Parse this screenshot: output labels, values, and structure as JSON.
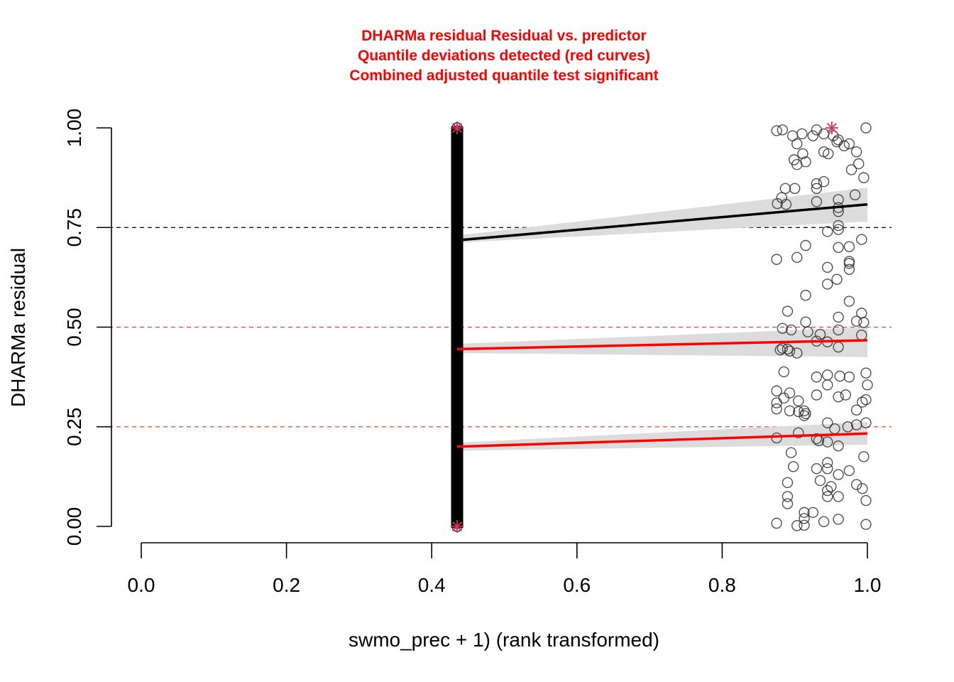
{
  "chart_data": {
    "type": "scatter",
    "title_lines": [
      "DHARMa residual Residual vs. predictor",
      "Quantile deviations detected (red curves)",
      "Combined adjusted quantile test significant"
    ],
    "xlabel": "swmo_prec + 1) (rank transformed)",
    "ylabel": "DHARMa residual",
    "xlim": [
      0,
      1
    ],
    "ylim": [
      0,
      1
    ],
    "x_ticks": [
      "0.0",
      "0.2",
      "0.4",
      "0.6",
      "0.8",
      "1.0"
    ],
    "x_tick_values": [
      0,
      0.2,
      0.4,
      0.6,
      0.8,
      1.0
    ],
    "y_ticks": [
      "0.00",
      "0.25",
      "0.50",
      "0.75",
      "1.00"
    ],
    "y_tick_values": [
      0,
      0.25,
      0.5,
      0.75,
      1.0
    ],
    "reference_lines": [
      {
        "y": 0.25,
        "color": "#e8414a",
        "style": "dashed"
      },
      {
        "y": 0.5,
        "color": "#e8414a",
        "style": "dashed"
      },
      {
        "y": 0.75,
        "color": "#000000",
        "style": "dashed"
      }
    ],
    "quantile_fits": [
      {
        "quantile": 0.75,
        "color": "#000000",
        "x": [
          0.435,
          1.0
        ],
        "y": [
          0.718,
          0.808
        ],
        "band_lower": [
          0.712,
          0.765
        ],
        "band_upper": [
          0.73,
          0.85
        ]
      },
      {
        "quantile": 0.5,
        "color": "#ff0000",
        "x": [
          0.435,
          1.0
        ],
        "y": [
          0.445,
          0.467
        ],
        "band_lower": [
          0.435,
          0.425
        ],
        "band_upper": [
          0.458,
          0.5
        ]
      },
      {
        "quantile": 0.25,
        "color": "#ff0000",
        "x": [
          0.435,
          1.0
        ],
        "y": [
          0.2,
          0.233
        ],
        "band_lower": [
          0.19,
          0.205
        ],
        "band_upper": [
          0.21,
          0.262
        ]
      }
    ],
    "stacked_column": {
      "x": 0.435,
      "y_min": 0.0,
      "y_max": 1.0
    },
    "outliers": [
      {
        "x": 0.435,
        "y": 1.0
      },
      {
        "x": 0.435,
        "y": 0.0
      },
      {
        "x": 0.951,
        "y": 1.0
      }
    ],
    "points": [
      [
        0.875,
        0.993
      ],
      [
        0.883,
        0.995
      ],
      [
        0.897,
        0.98
      ],
      [
        0.903,
        0.96
      ],
      [
        0.911,
        0.935
      ],
      [
        0.899,
        0.92
      ],
      [
        0.915,
        0.915
      ],
      [
        0.903,
        0.908
      ],
      [
        0.93,
        0.995
      ],
      [
        0.94,
        0.985
      ],
      [
        0.953,
        0.98
      ],
      [
        0.96,
        0.97
      ],
      [
        0.968,
        0.955
      ],
      [
        0.975,
        0.96
      ],
      [
        0.94,
        0.94
      ],
      [
        0.946,
        0.935
      ],
      [
        0.985,
        0.94
      ],
      [
        0.988,
        0.91
      ],
      [
        0.995,
        0.875
      ],
      [
        0.978,
        0.895
      ],
      [
        0.998,
        1.0
      ],
      [
        0.958,
        0.965
      ],
      [
        0.925,
        0.98
      ],
      [
        0.91,
        0.985
      ],
      [
        0.93,
        0.86
      ],
      [
        0.94,
        0.865
      ],
      [
        0.93,
        0.848
      ],
      [
        0.887,
        0.848
      ],
      [
        0.9,
        0.848
      ],
      [
        0.882,
        0.825
      ],
      [
        0.876,
        0.81
      ],
      [
        0.888,
        0.808
      ],
      [
        0.93,
        0.815
      ],
      [
        0.96,
        0.82
      ],
      [
        0.983,
        0.832
      ],
      [
        0.96,
        0.8
      ],
      [
        0.96,
        0.79
      ],
      [
        0.915,
        0.705
      ],
      [
        0.903,
        0.675
      ],
      [
        0.875,
        0.67
      ],
      [
        0.96,
        0.755
      ],
      [
        0.96,
        0.745
      ],
      [
        0.945,
        0.74
      ],
      [
        0.96,
        0.7
      ],
      [
        0.975,
        0.702
      ],
      [
        0.992,
        0.72
      ],
      [
        0.975,
        0.665
      ],
      [
        0.975,
        0.66
      ],
      [
        0.975,
        0.645
      ],
      [
        0.945,
        0.65
      ],
      [
        0.945,
        0.608
      ],
      [
        0.958,
        0.62
      ],
      [
        0.915,
        0.58
      ],
      [
        0.975,
        0.565
      ],
      [
        0.89,
        0.54
      ],
      [
        0.915,
        0.513
      ],
      [
        0.96,
        0.525
      ],
      [
        0.985,
        0.515
      ],
      [
        0.995,
        0.512
      ],
      [
        0.992,
        0.535
      ],
      [
        0.883,
        0.497
      ],
      [
        0.895,
        0.493
      ],
      [
        0.918,
        0.488
      ],
      [
        0.935,
        0.482
      ],
      [
        0.945,
        0.463
      ],
      [
        0.93,
        0.465
      ],
      [
        0.96,
        0.493
      ],
      [
        0.96,
        0.45
      ],
      [
        0.992,
        0.48
      ],
      [
        0.883,
        0.447
      ],
      [
        0.89,
        0.445
      ],
      [
        0.88,
        0.443
      ],
      [
        0.893,
        0.44
      ],
      [
        0.903,
        0.435
      ],
      [
        0.885,
        0.388
      ],
      [
        0.93,
        0.375
      ],
      [
        0.945,
        0.38
      ],
      [
        0.962,
        0.377
      ],
      [
        0.975,
        0.375
      ],
      [
        0.998,
        0.385
      ],
      [
        0.945,
        0.355
      ],
      [
        0.875,
        0.34
      ],
      [
        0.893,
        0.335
      ],
      [
        0.885,
        0.322
      ],
      [
        0.905,
        0.315
      ],
      [
        0.93,
        0.33
      ],
      [
        0.96,
        0.325
      ],
      [
        0.97,
        0.33
      ],
      [
        0.993,
        0.312
      ],
      [
        0.998,
        0.318
      ],
      [
        1.0,
        0.355
      ],
      [
        0.875,
        0.31
      ],
      [
        0.875,
        0.295
      ],
      [
        0.893,
        0.29
      ],
      [
        0.905,
        0.288
      ],
      [
        0.913,
        0.29
      ],
      [
        0.915,
        0.283
      ],
      [
        0.913,
        0.278
      ],
      [
        0.985,
        0.292
      ],
      [
        0.945,
        0.26
      ],
      [
        0.955,
        0.245
      ],
      [
        0.973,
        0.25
      ],
      [
        0.985,
        0.255
      ],
      [
        0.998,
        0.26
      ],
      [
        0.875,
        0.222
      ],
      [
        0.905,
        0.235
      ],
      [
        0.93,
        0.22
      ],
      [
        0.933,
        0.215
      ],
      [
        0.945,
        0.212
      ],
      [
        0.96,
        0.202
      ],
      [
        0.895,
        0.185
      ],
      [
        0.93,
        0.145
      ],
      [
        0.945,
        0.16
      ],
      [
        0.945,
        0.145
      ],
      [
        0.96,
        0.13
      ],
      [
        0.975,
        0.14
      ],
      [
        0.995,
        0.175
      ],
      [
        0.898,
        0.15
      ],
      [
        0.89,
        0.11
      ],
      [
        0.935,
        0.115
      ],
      [
        0.945,
        0.09
      ],
      [
        0.95,
        0.1
      ],
      [
        0.945,
        0.075
      ],
      [
        0.96,
        0.075
      ],
      [
        0.985,
        0.105
      ],
      [
        0.993,
        0.095
      ],
      [
        0.998,
        0.065
      ],
      [
        0.89,
        0.075
      ],
      [
        0.89,
        0.057
      ],
      [
        0.913,
        0.035
      ],
      [
        0.913,
        0.02
      ],
      [
        0.925,
        0.035
      ],
      [
        0.94,
        0.012
      ],
      [
        0.96,
        0.018
      ],
      [
        0.875,
        0.008
      ],
      [
        0.903,
        0.002
      ],
      [
        0.913,
        0.003
      ],
      [
        0.998,
        0.005
      ]
    ]
  }
}
